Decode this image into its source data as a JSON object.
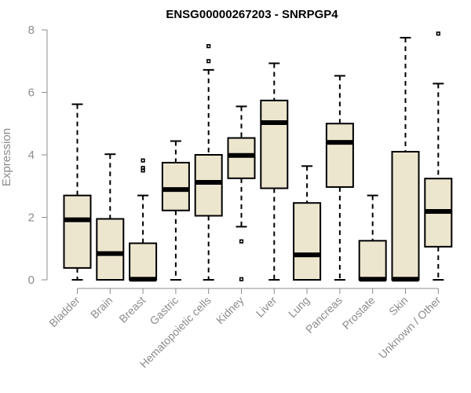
{
  "chart_data": {
    "type": "boxplot",
    "title": "ENSG00000267203 - SNRPGP4",
    "xlabel": "",
    "ylabel": "Expression",
    "ylim": [
      0,
      8
    ],
    "yticks": [
      0,
      2,
      4,
      6,
      8
    ],
    "categories": [
      "Bladder",
      "Brain",
      "Breast",
      "Gastric",
      "Hematopoietic cells",
      "Kidney",
      "Liver",
      "Lung",
      "Pancreas",
      "Prostate",
      "Skin",
      "Unknown / Other"
    ],
    "series": [
      {
        "name": "Bladder",
        "min": 0,
        "q1": 0.38,
        "median": 1.92,
        "q3": 2.7,
        "max": 5.62,
        "outliers": []
      },
      {
        "name": "Brain",
        "min": 0,
        "q1": 0,
        "median": 0.84,
        "q3": 1.95,
        "max": 4.02,
        "outliers": []
      },
      {
        "name": "Breast",
        "min": 0,
        "q1": 0,
        "median": 0.02,
        "q3": 1.17,
        "max": 2.7,
        "outliers": [
          3.5,
          3.58,
          3.82
        ]
      },
      {
        "name": "Gastric",
        "min": 0,
        "q1": 2.22,
        "median": 2.89,
        "q3": 3.75,
        "max": 4.44,
        "outliers": []
      },
      {
        "name": "Hematopoietic cells",
        "min": 0,
        "q1": 2.05,
        "median": 3.12,
        "q3": 4.0,
        "max": 6.72,
        "outliers": [
          7.0,
          7.48
        ]
      },
      {
        "name": "Kidney",
        "min": 1.7,
        "q1": 3.25,
        "median": 3.98,
        "q3": 4.54,
        "max": 5.55,
        "outliers": [
          0.02,
          1.23
        ]
      },
      {
        "name": "Liver",
        "min": 0,
        "q1": 2.93,
        "median": 5.03,
        "q3": 5.74,
        "max": 6.93,
        "outliers": []
      },
      {
        "name": "Lung",
        "min": 0,
        "q1": 0,
        "median": 0.8,
        "q3": 2.46,
        "max": 3.64,
        "outliers": []
      },
      {
        "name": "Pancreas",
        "min": 0,
        "q1": 2.97,
        "median": 4.4,
        "q3": 5.0,
        "max": 6.53,
        "outliers": []
      },
      {
        "name": "Prostate",
        "min": 0,
        "q1": 0,
        "median": 0.02,
        "q3": 1.25,
        "max": 2.7,
        "outliers": []
      },
      {
        "name": "Skin",
        "min": 0,
        "q1": 0,
        "median": 0.02,
        "q3": 4.1,
        "max": 7.75,
        "outliers": []
      },
      {
        "name": "Unknown / Other",
        "min": 0,
        "q1": 1.06,
        "median": 2.19,
        "q3": 3.24,
        "max": 6.28,
        "outliers": [
          7.88
        ]
      }
    ],
    "colors": {
      "box_fill": "#ede6cf",
      "box_stroke": "#000000",
      "axis": "#8c8c8c",
      "title": "#000000"
    }
  }
}
